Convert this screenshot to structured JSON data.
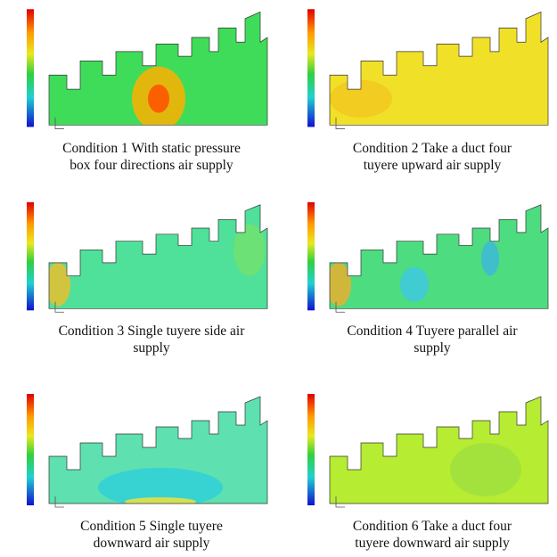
{
  "panels": [
    {
      "caption": [
        "Condition 1  With static pressure",
        "box four directions air supply"
      ]
    },
    {
      "caption": [
        "Condition 2  Take a duct four",
        "tuyere upward air supply"
      ]
    },
    {
      "caption": [
        "Condition 3  Single tuyere side air",
        "supply"
      ]
    },
    {
      "caption": [
        "Condition 4  Tuyere parallel air",
        "supply"
      ]
    },
    {
      "caption": [
        "Condition 5  Single tuyere",
        "downward air supply"
      ]
    },
    {
      "caption": [
        "Condition 6  Take a duct four",
        "tuyere downward air supply"
      ]
    }
  ]
}
